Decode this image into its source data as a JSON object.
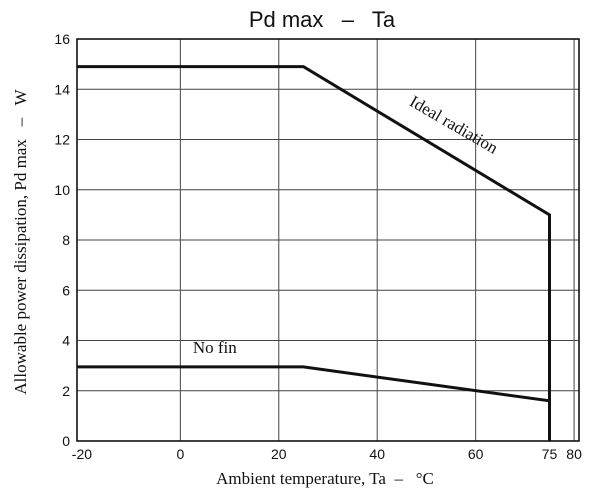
{
  "chart_data": {
    "type": "line",
    "title": "Pd max   –   Ta",
    "xlabel": "Ambient temperature, Ta  –   °C",
    "ylabel": "Allowable power dissipation, Pd max   –   W",
    "xlim": [
      -21,
      81
    ],
    "ylim": [
      0,
      16
    ],
    "x_ticks": [
      -20,
      0,
      20,
      40,
      60,
      75,
      80
    ],
    "x_tick_labels": [
      "-20",
      "0",
      "20",
      "40",
      "60",
      "75",
      "80"
    ],
    "x_gridlines": [
      0,
      20,
      40,
      60,
      80
    ],
    "y_ticks": [
      0,
      2,
      4,
      6,
      8,
      10,
      12,
      14,
      16
    ],
    "y_tick_labels": [
      "0",
      "2",
      "4",
      "6",
      "8",
      "10",
      "12",
      "14",
      "16"
    ],
    "y_gridlines": [
      2,
      4,
      6,
      8,
      10,
      12,
      14
    ],
    "grid": true,
    "series": [
      {
        "name": "Ideal radiation",
        "x": [
          -21,
          25,
          75,
          75
        ],
        "y": [
          14.9,
          14.9,
          9.0,
          0
        ]
      },
      {
        "name": "No fin",
        "x": [
          -21,
          25,
          75,
          75
        ],
        "y": [
          2.95,
          2.95,
          1.6,
          0
        ]
      }
    ],
    "annotations": [
      {
        "text": "Ideal radiation",
        "x": 55,
        "y": 12.4,
        "rotation_deg": 30
      },
      {
        "text": "No fin",
        "x": 7,
        "y": 3.5,
        "rotation_deg": 0
      }
    ]
  }
}
